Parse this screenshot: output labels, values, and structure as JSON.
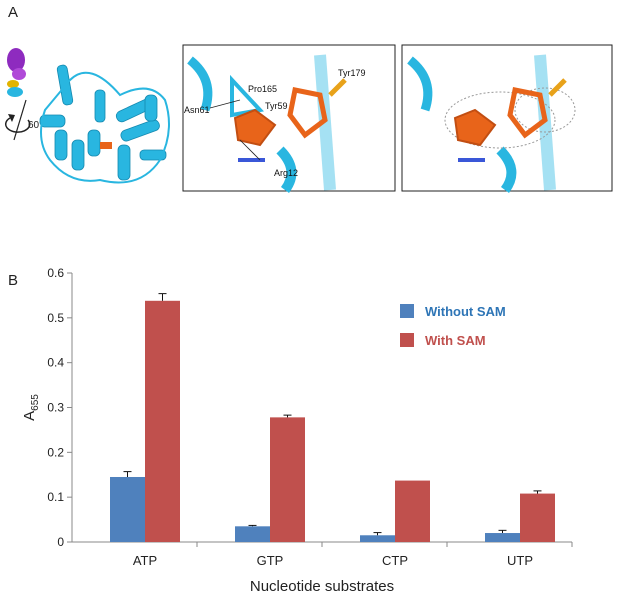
{
  "panel_a": {
    "label": "A",
    "rotation_label": "60°",
    "residue_labels": [
      "Pro165",
      "Tyr179",
      "Asn61",
      "Tyr59",
      "Arg12"
    ]
  },
  "panel_b": {
    "label": "B"
  },
  "colors": {
    "without_sam": "#4f81bd",
    "with_sam": "#c0504d",
    "legend_without_text": "#2e75b6",
    "legend_with_text": "#c0504d",
    "protein_cyan": "#29b6e0",
    "ligand_orange": "#e8641a"
  },
  "chart_data": {
    "type": "bar",
    "categories": [
      "ATP",
      "GTP",
      "CTP",
      "UTP"
    ],
    "series": [
      {
        "name": "Without SAM",
        "values": [
          0.145,
          0.035,
          0.015,
          0.02
        ],
        "errors": [
          0.012,
          0.002,
          0.006,
          0.006
        ]
      },
      {
        "name": "With SAM",
        "values": [
          0.538,
          0.278,
          0.137,
          0.108
        ],
        "errors": [
          0.016,
          0.005,
          0.0,
          0.006
        ]
      }
    ],
    "xlabel": "Nucleotide substrates",
    "ylabel": "A",
    "ylabel_subscript": "655",
    "ylim": [
      0,
      0.6
    ],
    "yticks": [
      "0",
      "0.1",
      "0.2",
      "0.3",
      "0.4",
      "0.5",
      "0.6"
    ],
    "legend_position": "top-right",
    "grid": false
  }
}
